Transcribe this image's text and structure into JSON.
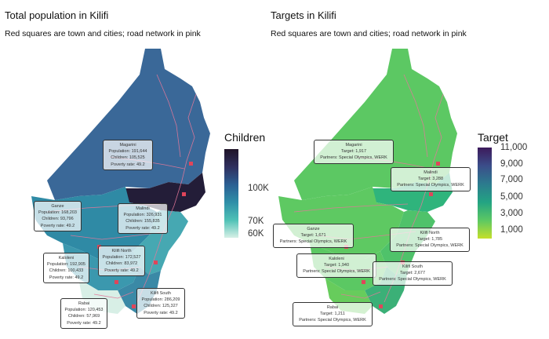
{
  "left": {
    "title": "Total population in Kilifi",
    "subtitle": "Red squares are town and cities; road network in pink",
    "legend": {
      "title": "Children",
      "labels": [
        "100K",
        "70K",
        "60K"
      ],
      "colors": [
        "#1f1328",
        "#2f2f5e",
        "#2b5f93",
        "#2f8fa8",
        "#4ec1b6",
        "#d6f0e6"
      ]
    },
    "callouts": [
      {
        "name": "Magarini",
        "lines": [
          "Magarini",
          "Population: 191,644",
          "Children: 105,525",
          "Poverty rate: 49.2"
        ]
      },
      {
        "name": "Ganze",
        "lines": [
          "Ganze",
          "Population: 168,203",
          "Children: 93,796",
          "Poverty rate: 49.2"
        ]
      },
      {
        "name": "Malindi",
        "lines": [
          "Malindi",
          "Population: 326,931",
          "Children: 155,835",
          "Poverty rate: 49.2"
        ]
      },
      {
        "name": "Kilifi North",
        "lines": [
          "Kilifi North",
          "Population: 172,527",
          "Children: 83,972",
          "Poverty rate: 49.2"
        ]
      },
      {
        "name": "Kaloleni",
        "lines": [
          "Kaloleni",
          "Population: 192,905",
          "Children: 100,433",
          "Poverty rate: 49.2"
        ]
      },
      {
        "name": "Kilifi South",
        "lines": [
          "Kilifi South",
          "Population: 286,209",
          "Children: 125,327",
          "Poverty rate: 49.2"
        ]
      },
      {
        "name": "Rabai",
        "lines": [
          "Rabai",
          "Population: 120,453",
          "Children: 57,969",
          "Poverty rate: 49.2"
        ]
      }
    ]
  },
  "right": {
    "title": "Targets in Kilifi",
    "subtitle": "Red squares are town and cities; road network in pink",
    "legend": {
      "title": "Target",
      "labels": [
        "11,000",
        "9,000",
        "7,000",
        "5,000",
        "3,000",
        "1,000"
      ],
      "colors": [
        "#3c1a5b",
        "#3b4d8a",
        "#2c7b8e",
        "#23a383",
        "#5cc863",
        "#c5df2a"
      ]
    },
    "callouts": [
      {
        "name": "Magarini",
        "lines": [
          "Magarini",
          "Target: 1,917",
          "Partners: Special Olympics, WERK"
        ]
      },
      {
        "name": "Malindi",
        "lines": [
          "Malindi",
          "Target: 3,288",
          "Partners: Special Olympics, WERK"
        ]
      },
      {
        "name": "Ganze",
        "lines": [
          "Ganze",
          "Target: 1,671",
          "Partners: Special Olympics, WERK"
        ]
      },
      {
        "name": "Kilifi North",
        "lines": [
          "Kilifi North",
          "Target: 1,785",
          "Partners: Special Olympics, WERK"
        ]
      },
      {
        "name": "Kaloleni",
        "lines": [
          "Kaloleni",
          "Target: 1,940",
          "Partners: Special Olympics, WERK"
        ]
      },
      {
        "name": "Kilifi South",
        "lines": [
          "Kilifi South",
          "Target: 2,677",
          "Partners: Special Olympics, WERK"
        ]
      },
      {
        "name": "Rabai",
        "lines": [
          "Rabai",
          "Target: 1,211",
          "Partners: Special Olympics, WERK"
        ]
      }
    ]
  }
}
